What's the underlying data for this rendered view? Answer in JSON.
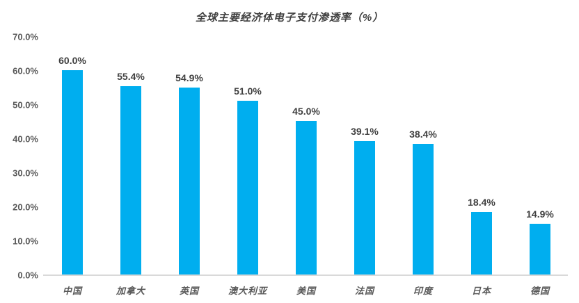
{
  "chart_data": {
    "type": "bar",
    "title": "全球主要经济体电子支付渗透率（%）",
    "categories": [
      "中国",
      "加拿大",
      "英国",
      "澳大利亚",
      "美国",
      "法国",
      "印度",
      "日本",
      "德国"
    ],
    "values": [
      60.0,
      55.4,
      54.9,
      51.0,
      45.0,
      39.1,
      38.4,
      18.4,
      14.9
    ],
    "value_labels": [
      "60.0%",
      "55.4%",
      "54.9%",
      "51.0%",
      "45.0%",
      "39.1%",
      "38.4%",
      "18.4%",
      "14.9%"
    ],
    "xlabel": "",
    "ylabel": "",
    "ylim": [
      0,
      70
    ],
    "ytick_labels": [
      "0.0%",
      "10.0%",
      "20.0%",
      "30.0%",
      "40.0%",
      "50.0%",
      "60.0%",
      "70.0%"
    ],
    "ytick_values": [
      0,
      10,
      20,
      30,
      40,
      50,
      60,
      70
    ],
    "grid": false,
    "legend": "none",
    "bar_color": "#00aeef",
    "axis_line_color": "#d9d9d9",
    "value_label_color": "#404040",
    "tick_label_color": "#595959",
    "title_color": "#404040",
    "background_color": "#ffffff"
  }
}
